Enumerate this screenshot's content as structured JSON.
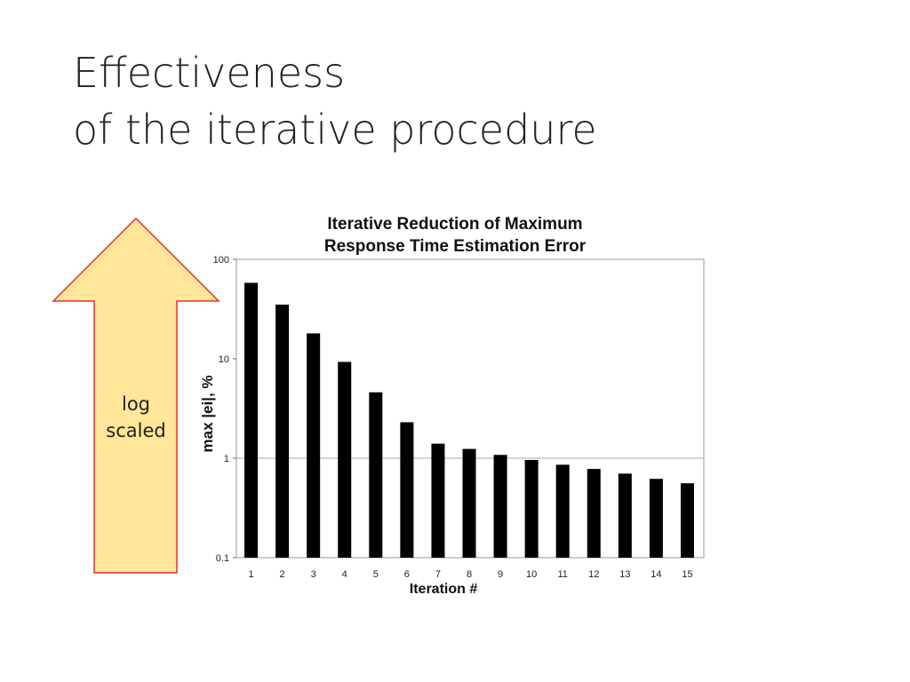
{
  "slide": {
    "title_line1": "Effectiveness",
    "title_line2": "of the iterative procedure",
    "arrow_label_line1": "log",
    "arrow_label_line2": "scaled",
    "arrow_fill": "#FFE699",
    "arrow_stroke": "#E03030"
  },
  "chart_data": {
    "type": "bar",
    "title": [
      "Iterative Reduction of Maximum",
      "Response Time Estimation Error"
    ],
    "xlabel": "Iteration #",
    "ylabel": "max |ei|, %",
    "yscale": "log",
    "ylim": [
      0.1,
      100
    ],
    "yticks": [
      0.1,
      1,
      10,
      100
    ],
    "ytick_labels": [
      "0.1",
      "1",
      "10",
      "100"
    ],
    "categories": [
      "1",
      "2",
      "3",
      "4",
      "5",
      "6",
      "7",
      "8",
      "9",
      "10",
      "11",
      "12",
      "13",
      "14",
      "15"
    ],
    "values": [
      58,
      35,
      18,
      9.3,
      4.6,
      2.3,
      1.4,
      1.24,
      1.08,
      0.96,
      0.86,
      0.78,
      0.7,
      0.62,
      0.56
    ],
    "grid": "horizontal at 1",
    "bar_color": "#000000"
  }
}
